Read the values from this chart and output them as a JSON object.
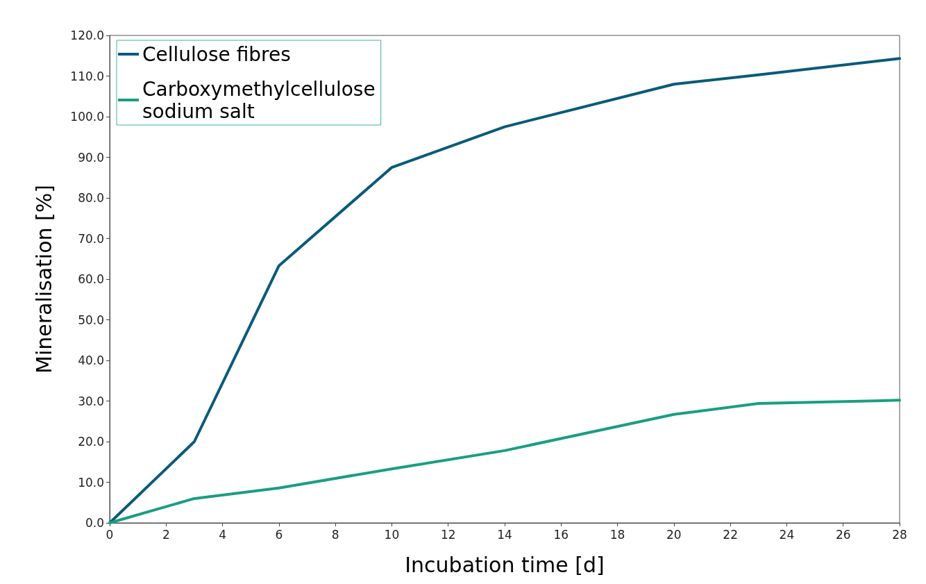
{
  "chart_data": {
    "type": "line",
    "xlabel": "Incubation time [d]",
    "ylabel": "Mineralisation [%]",
    "xlim": [
      0,
      28
    ],
    "xticks": [
      0,
      2,
      4,
      6,
      8,
      10,
      12,
      14,
      16,
      18,
      20,
      22,
      24,
      26,
      28
    ],
    "ylim": [
      0,
      120
    ],
    "yticks": [
      {
        "value": 0,
        "label": "0.0"
      },
      {
        "value": 10,
        "label": "10.0"
      },
      {
        "value": 20,
        "label": "20.0"
      },
      {
        "value": 30,
        "label": "30.0"
      },
      {
        "value": 40,
        "label": "40.0"
      },
      {
        "value": 50,
        "label": "50.0"
      },
      {
        "value": 60,
        "label": "60.0"
      },
      {
        "value": 70,
        "label": "70.0"
      },
      {
        "value": 80,
        "label": "80.0"
      },
      {
        "value": 90,
        "label": "90.0"
      },
      {
        "value": 100,
        "label": "100.0"
      },
      {
        "value": 110,
        "label": "110.0"
      },
      {
        "value": 120,
        "label": "120.0"
      }
    ],
    "series": [
      {
        "name": "Cellulose fibres",
        "color": "#0b5a7a",
        "x": [
          0,
          3,
          6,
          10,
          14,
          20,
          23,
          28
        ],
        "values": [
          0,
          20,
          63.3,
          87.5,
          97.5,
          108,
          110.3,
          114.3
        ]
      },
      {
        "name": "Carboxymethylcellulose\nsodium salt",
        "color": "#1a9e82",
        "x": [
          0,
          3,
          6,
          10,
          14,
          20,
          23,
          28
        ],
        "values": [
          0,
          6,
          8.6,
          13.3,
          17.8,
          26.7,
          29.4,
          30.2
        ]
      }
    ],
    "legend": "top left",
    "grid": false,
    "marker": "none",
    "line_style": "solid"
  }
}
